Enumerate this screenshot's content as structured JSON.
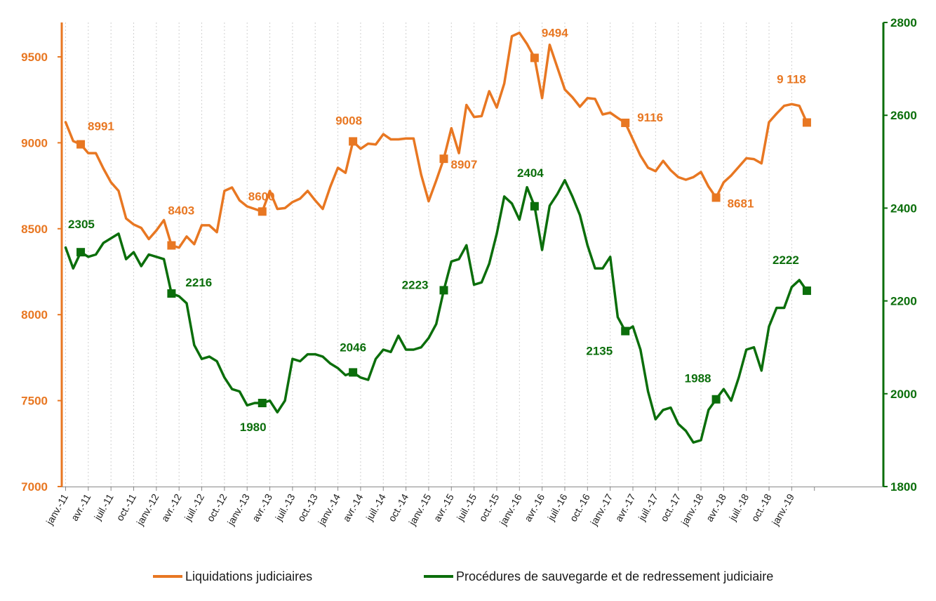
{
  "colors": {
    "liquidations": "#E87722",
    "procedures": "#0B6E0B",
    "grid": "#d0d0d0"
  },
  "chart_data": {
    "type": "line",
    "x_tick_labels": [
      "janv.-11",
      "avr.-11",
      "juil.-11",
      "oct.-11",
      "janv.-12",
      "avr.-12",
      "juil.-12",
      "oct.-12",
      "janv.-13",
      "avr.-13",
      "juil.-13",
      "oct.-13",
      "janv.-14",
      "avr.-14",
      "juil.-14",
      "oct.-14",
      "janv.-15",
      "avr.-15",
      "juil.-15",
      "oct.-15",
      "janv.-16",
      "avr.-16",
      "juil.-16",
      "oct.-16",
      "janv.-17",
      "avr.-17",
      "juil.-17",
      "oct.-17",
      "janv.-18",
      "avr.-18",
      "juil.-18",
      "oct.-18",
      "janv.-19"
    ],
    "y_left": {
      "ticks": [
        "7000",
        "7500",
        "8000",
        "8500",
        "9000",
        "9500"
      ],
      "range": [
        7000,
        9700
      ]
    },
    "y_right": {
      "ticks": [
        "1800",
        "2000",
        "2200",
        "2400",
        "2600",
        "2800"
      ],
      "range": [
        1800,
        2800
      ]
    },
    "grid": "vertical-dotted",
    "legend_position": "bottom",
    "series": [
      {
        "name": "Liquidations judiciaires",
        "axis": "left",
        "color": "#E87722",
        "values": [
          9120,
          9010,
          8991,
          8940,
          8940,
          8850,
          8770,
          8720,
          8560,
          8525,
          8505,
          8440,
          8490,
          8550,
          8403,
          8390,
          8455,
          8410,
          8520,
          8520,
          8480,
          8720,
          8740,
          8665,
          8630,
          8615,
          8600,
          8720,
          8615,
          8620,
          8655,
          8675,
          8720,
          8665,
          8615,
          8745,
          8855,
          8825,
          9008,
          8965,
          8995,
          8990,
          9050,
          9020,
          9020,
          9025,
          9025,
          8815,
          8660,
          8780,
          8907,
          9085,
          8940,
          9220,
          9150,
          9155,
          9300,
          9205,
          9345,
          9620,
          9640,
          9575,
          9494,
          9260,
          9570,
          9440,
          9310,
          9265,
          9210,
          9260,
          9255,
          9165,
          9175,
          9145,
          9116,
          9020,
          8925,
          8855,
          8835,
          8895,
          8840,
          8800,
          8785,
          8800,
          8830,
          8745,
          8681,
          8770,
          8810,
          8860,
          8910,
          8905,
          8880,
          9120,
          9170,
          9215,
          9225,
          9215,
          9118
        ],
        "markers": [
          {
            "index": 2,
            "label": "8991"
          },
          {
            "index": 14,
            "label": "8403"
          },
          {
            "index": 26,
            "label": "8600"
          },
          {
            "index": 38,
            "label": "9008"
          },
          {
            "index": 50,
            "label": "8907"
          },
          {
            "index": 62,
            "label": "9494"
          },
          {
            "index": 74,
            "label": "9116"
          },
          {
            "index": 86,
            "label": "8681"
          },
          {
            "index": 98,
            "label": "9 118"
          }
        ]
      },
      {
        "name": "Procédures de sauvegarde et de redressement judiciaire",
        "axis": "right",
        "color": "#0B6E0B",
        "values": [
          2315,
          2270,
          2305,
          2295,
          2300,
          2325,
          2335,
          2345,
          2290,
          2305,
          2275,
          2300,
          2295,
          2290,
          2216,
          2210,
          2195,
          2105,
          2075,
          2080,
          2070,
          2035,
          2010,
          2005,
          1975,
          1980,
          1980,
          1985,
          1960,
          1985,
          2075,
          2070,
          2085,
          2085,
          2080,
          2065,
          2055,
          2040,
          2046,
          2035,
          2030,
          2075,
          2095,
          2090,
          2125,
          2095,
          2095,
          2100,
          2120,
          2150,
          2223,
          2285,
          2290,
          2320,
          2235,
          2240,
          2280,
          2345,
          2425,
          2410,
          2375,
          2445,
          2404,
          2310,
          2405,
          2430,
          2460,
          2425,
          2385,
          2320,
          2270,
          2270,
          2295,
          2165,
          2135,
          2145,
          2095,
          2005,
          1945,
          1965,
          1970,
          1935,
          1920,
          1895,
          1900,
          1965,
          1988,
          2010,
          1985,
          2035,
          2095,
          2100,
          2050,
          2145,
          2185,
          2185,
          2230,
          2245,
          2222
        ],
        "markers": [
          {
            "index": 2,
            "label": "2305"
          },
          {
            "index": 14,
            "label": "2216"
          },
          {
            "index": 26,
            "label": "1980"
          },
          {
            "index": 38,
            "label": "2046"
          },
          {
            "index": 50,
            "label": "2223"
          },
          {
            "index": 62,
            "label": "2404"
          },
          {
            "index": 74,
            "label": "2135"
          },
          {
            "index": 86,
            "label": "1988"
          },
          {
            "index": 98,
            "label": "2222"
          }
        ]
      }
    ]
  },
  "legend": {
    "liquidations_label": "Liquidations judiciaires",
    "procedures_label": "Procédures de sauvegarde et de redressement judiciaire"
  }
}
